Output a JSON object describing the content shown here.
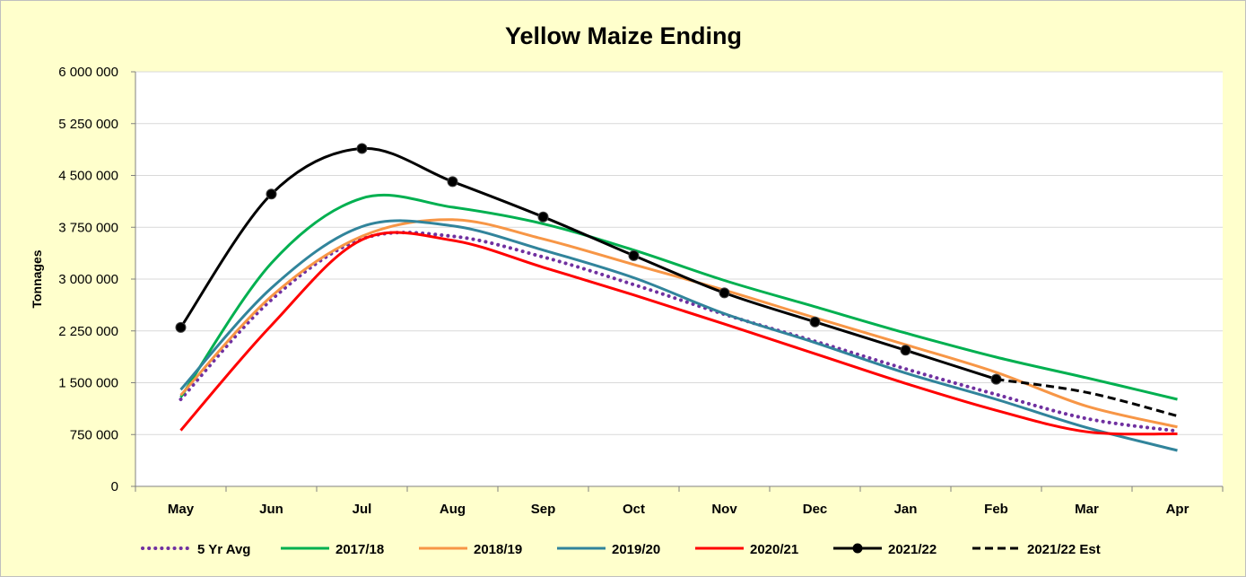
{
  "chart_data": {
    "type": "line",
    "title": "Yellow Maize Ending",
    "xlabel": "",
    "ylabel": "Tonnages",
    "categories": [
      "May",
      "Jun",
      "Jul",
      "Aug",
      "Sep",
      "Oct",
      "Nov",
      "Dec",
      "Jan",
      "Feb",
      "Mar",
      "Apr"
    ],
    "ylim": [
      0,
      6000000
    ],
    "yticks": [
      0,
      750000,
      1500000,
      2250000,
      3000000,
      3750000,
      4500000,
      5250000,
      6000000
    ],
    "ytick_labels": [
      "0",
      "750 000",
      "1 500 000",
      "2 250 000",
      "3 000 000",
      "3 750 000",
      "4 500 000",
      "5 250 000",
      "6 000 000"
    ],
    "grid": true,
    "legend_position": "bottom",
    "series": [
      {
        "name": "5 Yr Avg",
        "color": "#7030a0",
        "style": "dotted",
        "values": [
          1260000,
          2700000,
          3580000,
          3620000,
          3320000,
          2920000,
          2490000,
          2100000,
          1700000,
          1330000,
          980000,
          800000
        ]
      },
      {
        "name": "2017/18",
        "color": "#00b050",
        "style": "solid",
        "values": [
          1290000,
          3230000,
          4170000,
          4040000,
          3800000,
          3420000,
          2980000,
          2600000,
          2220000,
          1870000,
          1570000,
          1260000
        ]
      },
      {
        "name": "2018/19",
        "color": "#f79646",
        "style": "solid",
        "values": [
          1320000,
          2750000,
          3620000,
          3860000,
          3580000,
          3210000,
          2840000,
          2440000,
          2050000,
          1650000,
          1160000,
          860000
        ]
      },
      {
        "name": "2019/20",
        "color": "#31849b",
        "style": "solid",
        "values": [
          1400000,
          2870000,
          3760000,
          3770000,
          3420000,
          3020000,
          2500000,
          2080000,
          1640000,
          1260000,
          850000,
          520000
        ]
      },
      {
        "name": "2020/21",
        "color": "#ff0000",
        "style": "solid",
        "values": [
          810000,
          2330000,
          3570000,
          3560000,
          3170000,
          2770000,
          2350000,
          1920000,
          1490000,
          1100000,
          790000,
          760000
        ]
      },
      {
        "name": "2021/22",
        "color": "#000000",
        "style": "solid",
        "markers": true,
        "values": [
          2300000,
          4230000,
          4890000,
          4410000,
          3900000,
          3340000,
          2800000,
          2380000,
          1970000,
          1550000,
          null,
          null
        ]
      },
      {
        "name": "2021/22 Est",
        "color": "#000000",
        "style": "dashed",
        "values": [
          null,
          null,
          null,
          null,
          null,
          null,
          null,
          null,
          null,
          1550000,
          1360000,
          1020000
        ]
      }
    ]
  }
}
